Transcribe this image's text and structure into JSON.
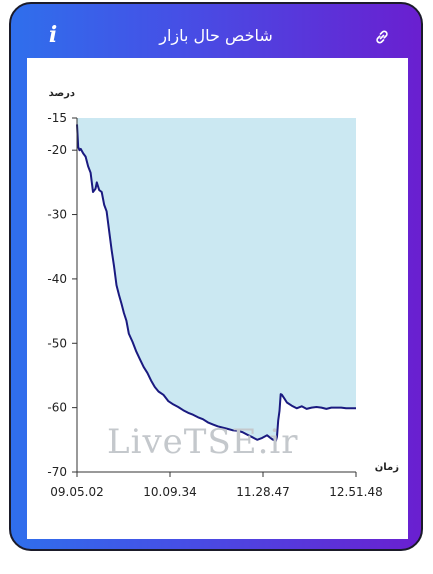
{
  "header": {
    "title": "شاخص حال بازار",
    "info_icon_glyph": "i",
    "link_icon": "link-icon"
  },
  "watermark": "LiveTSE.ir",
  "colors": {
    "gradient_start": "#2f6fec",
    "gradient_end": "#6a1fd0",
    "fill": "#cbe8f2",
    "line": "#1a1a80"
  },
  "chart_data": {
    "type": "area",
    "ylabel": "درصد",
    "xlabel": "زمان",
    "ylim": [
      -70,
      -15
    ],
    "xlim": [
      "09.05.02",
      "12.51.48"
    ],
    "yticks": [
      "-15",
      "-20",
      "-30",
      "-40",
      "-50",
      "-60",
      "-70"
    ],
    "xticks": [
      "09.05.02",
      "10.09.34",
      "11.28.47",
      "12.51.48"
    ],
    "grid": false,
    "series": [
      {
        "x_minutes": [
          0,
          1,
          2,
          3,
          5,
          7,
          9,
          11,
          13,
          15,
          16,
          18,
          20,
          22,
          24,
          26,
          28,
          30,
          32,
          34,
          36,
          38,
          40,
          42,
          45,
          48,
          51,
          54,
          57,
          60,
          63,
          66,
          70,
          74,
          78,
          82,
          86,
          90,
          94,
          98,
          102,
          106,
          110,
          114,
          118,
          122,
          126,
          130,
          134,
          138,
          142,
          146,
          150,
          154,
          158,
          161,
          162,
          163,
          164,
          165,
          166,
          168,
          170,
          174,
          178,
          182,
          186,
          190,
          194,
          198,
          202,
          206,
          210,
          214,
          218,
          222,
          226
        ],
        "values": [
          -16,
          -19.5,
          -20,
          -19.8,
          -20.5,
          -21,
          -22.5,
          -23.5,
          -26.5,
          -26,
          -25,
          -26.2,
          -26.5,
          -28.5,
          -29.5,
          -32.5,
          -35.5,
          -38,
          -41,
          -42.5,
          -43.8,
          -45.3,
          -46.5,
          -48.5,
          -49.8,
          -51.3,
          -52.5,
          -53.7,
          -54.6,
          -55.8,
          -56.8,
          -57.5,
          -58,
          -59,
          -59.5,
          -59.9,
          -60.4,
          -60.8,
          -61.1,
          -61.5,
          -61.8,
          -62.3,
          -62.6,
          -62.9,
          -63.1,
          -63.3,
          -63.5,
          -63.6,
          -63.8,
          -64.2,
          -64.6,
          -65.0,
          -64.7,
          -64.3,
          -64.9,
          -65.2,
          -64.5,
          -62.0,
          -60.5,
          -57.9,
          -58.0,
          -58.6,
          -59.2,
          -59.7,
          -60.1,
          -59.8,
          -60.2,
          -60.0,
          -59.9,
          -60.0,
          -60.2,
          -60.0,
          -60.0,
          -60.0,
          -60.1,
          -60.1,
          -60.1
        ]
      }
    ]
  }
}
